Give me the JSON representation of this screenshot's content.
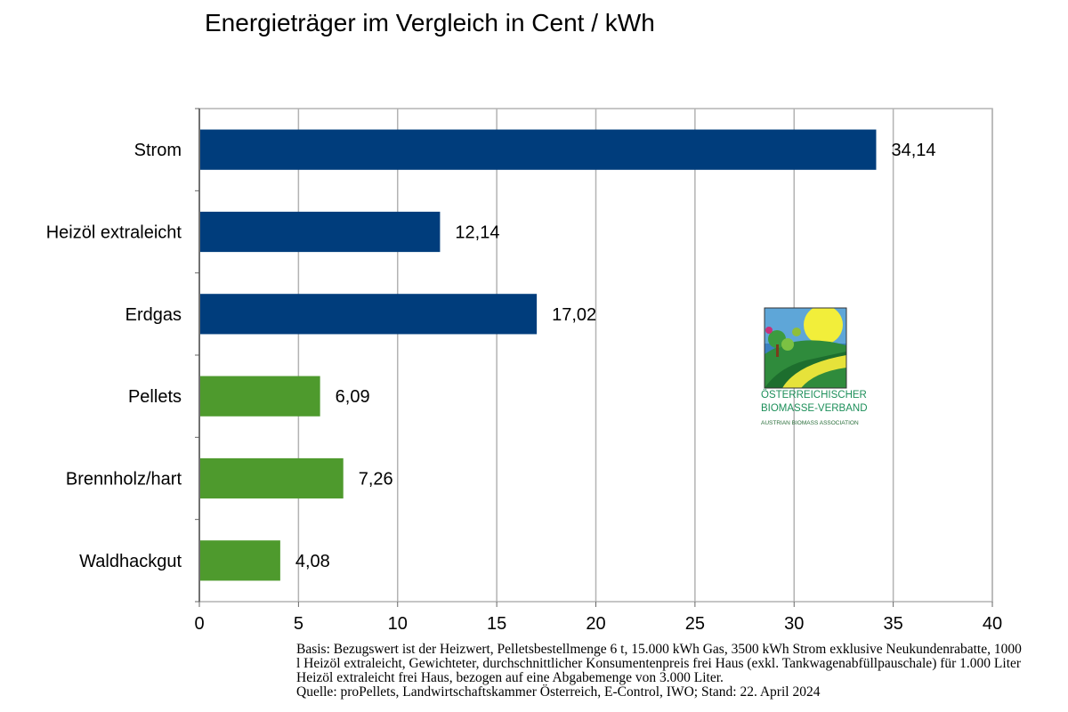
{
  "chart_data": {
    "type": "bar",
    "orientation": "horizontal",
    "title": "Energieträger im Vergleich in Cent / kWh",
    "categories": [
      "Strom",
      "Heizöl extraleicht",
      "Erdgas",
      "Pellets",
      "Brennholz/hart",
      "Waldhackgut"
    ],
    "values": [
      34.14,
      12.14,
      17.02,
      6.09,
      7.26,
      4.08
    ],
    "value_labels": [
      "34,14",
      "12,14",
      "17,02",
      "6,09",
      "7,26",
      "4,08"
    ],
    "colors": [
      "#003d7c",
      "#003d7c",
      "#003d7c",
      "#4e9a2d",
      "#4e9a2d",
      "#4e9a2d"
    ],
    "xlim": [
      0,
      40
    ],
    "xticks": [
      0,
      5,
      10,
      15,
      20,
      25,
      30,
      35,
      40
    ],
    "xlabel": "",
    "ylabel": "",
    "grid": true
  },
  "logo": {
    "line1": "ÖSTERREICHISCHER",
    "line2": "BIOMASSE-VERBAND",
    "line3": "AUSTRIAN BIOMASS ASSOCIATION"
  },
  "footnote": {
    "basis": "Basis: Bezugswert ist der Heizwert, Pelletsbestellmenge 6 t, 15.000 kWh Gas, 3500 kWh Strom exklusive Neukundenrabatte, 1000 l Heizöl extraleicht, Gewichteter, durchschnittlicher Konsumentenpreis frei Haus (exkl. Tankwagenabfüllpauschale) für 1.000 Liter Heizöl extraleicht frei Haus, bezogen auf eine Abgabemenge von 3.000 Liter.",
    "source": "Quelle: proPellets, Landwirtschaftskammer Österreich, E-Control, IWO; Stand: 22. April 2024"
  }
}
